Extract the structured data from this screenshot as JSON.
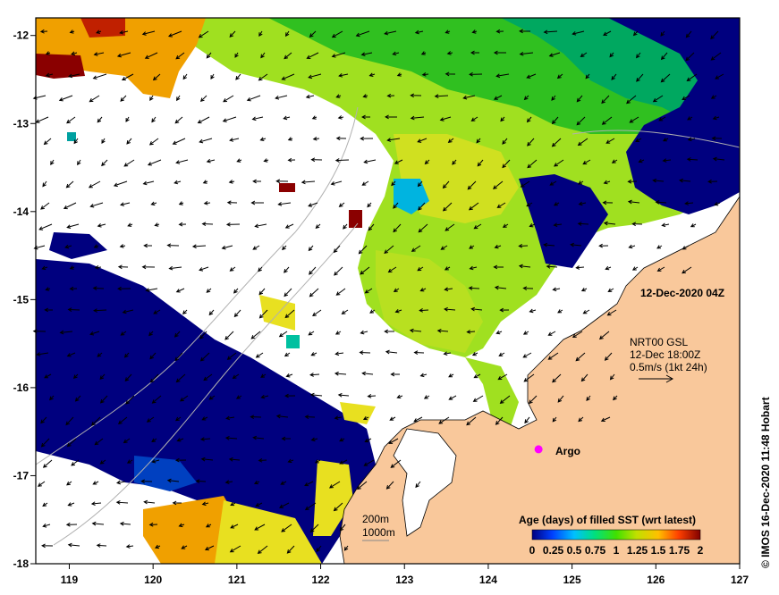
{
  "map": {
    "longitude_ticks": [
      "119",
      "120",
      "121",
      "122",
      "123",
      "124",
      "125",
      "126",
      "127"
    ],
    "latitude_ticks": [
      "-12",
      "-13",
      "-14",
      "-15",
      "-16",
      "-17",
      "-18"
    ],
    "lon_range": [
      118.6,
      127
    ],
    "lat_range": [
      -11.8,
      -18
    ],
    "timestamp": "12-Dec-2020 04Z",
    "current_info": {
      "line1": "NRT00 GSL",
      "line2": "12-Dec 18:00Z",
      "line3": "0.5m/s (1kt 24h)"
    },
    "argo_label": "Argo",
    "argo_position": {
      "lon": 124.6,
      "lat": -16.7
    },
    "bathymetry_legend": [
      "200m",
      "1000m"
    ],
    "colorbar": {
      "title": "Age (days) of filled SST (wrt latest)",
      "tick_labels": [
        "0",
        "0.25",
        "0.5",
        "0.75",
        "1",
        "1.25",
        "1.5",
        "1.75",
        "2"
      ],
      "range": [
        0,
        2
      ]
    },
    "credit": "© IMOS 16-Dec-2020 11:48 Hobart",
    "colors": {
      "land": "#f9c89b",
      "age_0": "#00007f",
      "age_025": "#0040c0",
      "age_05": "#00b4e0",
      "age_075": "#00c060",
      "age_1": "#30d020",
      "age_125": "#a0e020",
      "age_15": "#e8e020",
      "age_175": "#f0a000",
      "age_2": "#8a0000",
      "argo_marker": "#ff00ff"
    }
  }
}
